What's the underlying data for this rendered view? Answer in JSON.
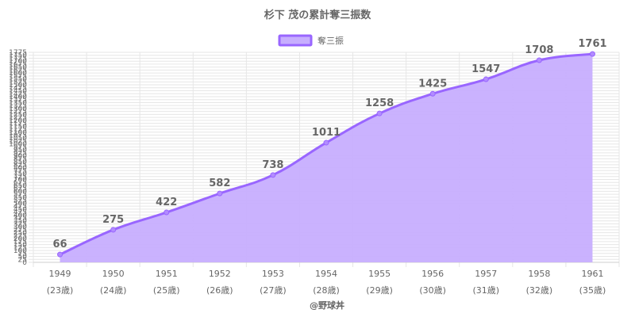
{
  "chart_data": {
    "type": "area",
    "title": "杉下 茂の累計奪三振数",
    "legend": {
      "label": "奪三振",
      "position": "top"
    },
    "categories": [
      "1949",
      "1950",
      "1951",
      "1952",
      "1953",
      "1954",
      "1955",
      "1956",
      "1957",
      "1958",
      "1961"
    ],
    "sublabels": [
      "(23歳)",
      "(24歳)",
      "(25歳)",
      "(26歳)",
      "(27歳)",
      "(28歳)",
      "(29歳)",
      "(30歳)",
      "(31歳)",
      "(32歳)",
      "(35歳)"
    ],
    "series": [
      {
        "name": "奪三振",
        "values": [
          66,
          275,
          422,
          582,
          738,
          1011,
          1258,
          1425,
          1547,
          1708,
          1761
        ]
      }
    ],
    "ylim": [
      0,
      1775
    ],
    "ytick_step": 25,
    "grid": true,
    "colors": {
      "line": "#9966ff",
      "fill": "#c7aefe",
      "point": "#b28cff",
      "grid": "#e6e6e6"
    }
  },
  "credit": "@野球丼"
}
